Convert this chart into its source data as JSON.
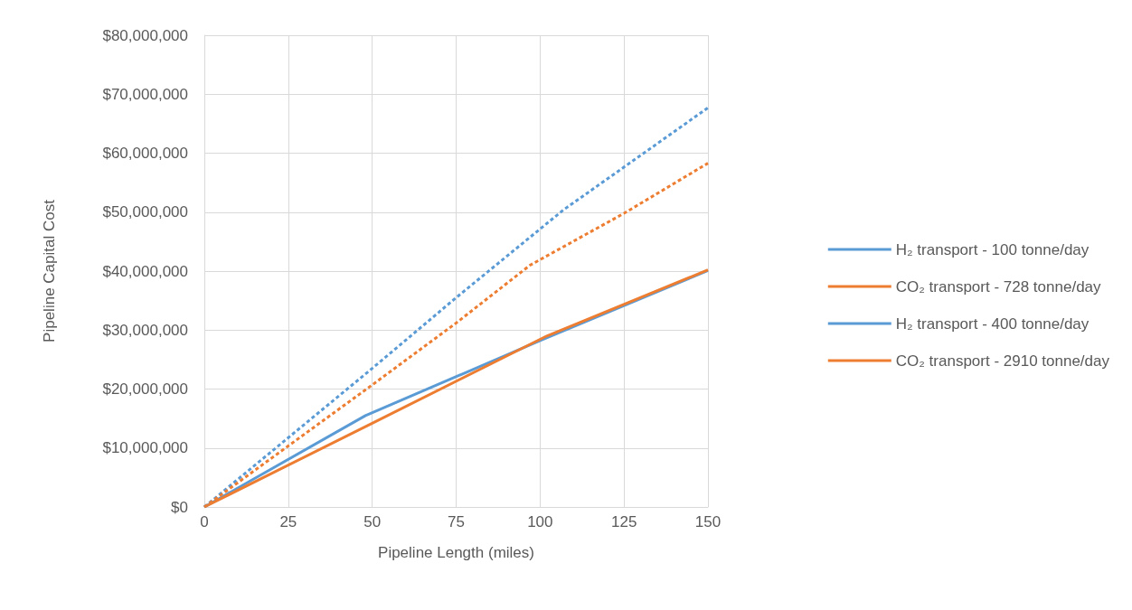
{
  "chart_data": {
    "type": "line",
    "xlabel": "Pipeline Length (miles)",
    "ylabel": "Pipeline Capital Cost",
    "xlim": [
      0,
      150
    ],
    "xticks": [
      0,
      25,
      50,
      75,
      100,
      125,
      150
    ],
    "ylim": [
      0,
      80000000
    ],
    "yticks": [
      {
        "value": 0,
        "label": "$0"
      },
      {
        "value": 10000000,
        "label": "$10,000,000"
      },
      {
        "value": 20000000,
        "label": "$20,000,000"
      },
      {
        "value": 30000000,
        "label": "$30,000,000"
      },
      {
        "value": 40000000,
        "label": "$40,000,000"
      },
      {
        "value": 50000000,
        "label": "$50,000,000"
      },
      {
        "value": 60000000,
        "label": "$60,000,000"
      },
      {
        "value": 70000000,
        "label": "$70,000,000"
      },
      {
        "value": 80000000,
        "label": "$80,000,000"
      }
    ],
    "grid": true,
    "legend": "right",
    "marker": "none",
    "series": [
      {
        "name": "H₂ transport - 100 tonne/day",
        "color": "#5b9bd5",
        "line_style": "solid",
        "x": [
          0,
          48,
          100,
          150
        ],
        "values": [
          0,
          15500000,
          28200000,
          40100000
        ]
      },
      {
        "name": "CO₂ transport - 728 tonne/day",
        "color": "#ed7d31",
        "line_style": "solid",
        "x": [
          0,
          50,
          102,
          150
        ],
        "values": [
          0,
          14200000,
          29000000,
          40200000
        ]
      },
      {
        "name": "H₂ transport - 400 tonne/day",
        "color": "#5b9bd5",
        "line_style": "dashed",
        "x": [
          0,
          50,
          75,
          107,
          150
        ],
        "values": [
          0,
          23500000,
          35500000,
          50400000,
          67700000
        ]
      },
      {
        "name": "CO₂ transport - 2910 tonne/day",
        "color": "#ed7d31",
        "line_style": "dashed",
        "x": [
          0,
          50,
          75,
          97,
          125,
          150
        ],
        "values": [
          0,
          20700000,
          31200000,
          41000000,
          49800000,
          58300000
        ]
      }
    ]
  }
}
